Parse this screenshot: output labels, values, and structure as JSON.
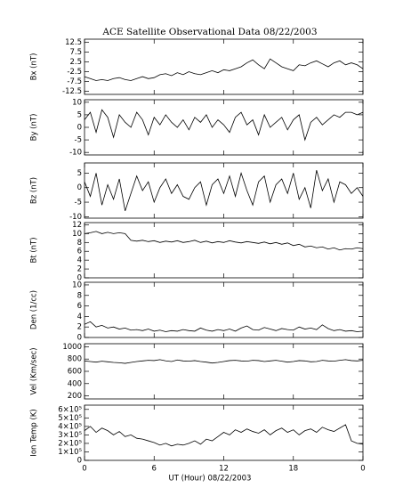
{
  "title": "ACE Satellite Observational Data  08/22/2003",
  "x_label": "UT (Hour)  08/22/2003",
  "chart_data": [
    {
      "type": "line",
      "y_label": "Bx (nT)",
      "color": "#000000",
      "xlim": [
        0,
        24
      ],
      "xticks": [
        0,
        6,
        12,
        18,
        {
          "value": 24,
          "label": "0"
        }
      ],
      "ylim": [
        -14,
        14
      ],
      "yticks": [
        -12.5,
        -7.5,
        -2.5,
        2.5,
        7.5,
        12.5
      ],
      "x": [
        0,
        0.5,
        1,
        1.5,
        2,
        2.5,
        3,
        3.5,
        4,
        4.5,
        5,
        5.5,
        6,
        6.5,
        7,
        7.5,
        8,
        8.5,
        9,
        9.5,
        10,
        10.5,
        11,
        11.5,
        12,
        12.5,
        13,
        13.5,
        14,
        14.5,
        15,
        15.5,
        16,
        16.5,
        17,
        17.5,
        18,
        18.5,
        19,
        19.5,
        20,
        20.5,
        21,
        21.5,
        22,
        22.5,
        23,
        23.5,
        24
      ],
      "values": [
        -5,
        -6,
        -7,
        -6.5,
        -7,
        -6,
        -5.5,
        -6.5,
        -7,
        -6,
        -5,
        -6,
        -5.5,
        -4,
        -3.5,
        -4.5,
        -3,
        -4,
        -2.5,
        -3.5,
        -4,
        -3,
        -2,
        -3,
        -1.5,
        -2,
        -1,
        0,
        2,
        3.5,
        1,
        -1,
        4,
        2,
        0,
        -1,
        -2,
        1,
        0.5,
        2,
        3,
        1.5,
        0,
        2,
        3,
        1,
        2,
        1,
        -1
      ]
    },
    {
      "type": "line",
      "y_label": "By (nT)",
      "color": "#000000",
      "xlim": [
        0,
        24
      ],
      "xticks": [
        0,
        6,
        12,
        18,
        {
          "value": 24,
          "label": "0"
        }
      ],
      "ylim": [
        -11,
        11
      ],
      "yticks": [
        -10,
        -5,
        0,
        5,
        10
      ],
      "x": [
        0,
        0.5,
        1,
        1.5,
        2,
        2.5,
        3,
        3.5,
        4,
        4.5,
        5,
        5.5,
        6,
        6.5,
        7,
        7.5,
        8,
        8.5,
        9,
        9.5,
        10,
        10.5,
        11,
        11.5,
        12,
        12.5,
        13,
        13.5,
        14,
        14.5,
        15,
        15.5,
        16,
        16.5,
        17,
        17.5,
        18,
        18.5,
        19,
        19.5,
        20,
        20.5,
        21,
        21.5,
        22,
        22.5,
        23,
        23.5,
        24
      ],
      "values": [
        3,
        6,
        -2,
        7,
        4,
        -4,
        5,
        2,
        0,
        6,
        3,
        -3,
        4,
        1,
        5,
        2,
        0,
        3,
        -1,
        4,
        2,
        5,
        0,
        3,
        1,
        -2,
        4,
        6,
        1,
        3,
        -3,
        5,
        0,
        2,
        4,
        -1,
        3,
        5,
        -5,
        2,
        4,
        1,
        3,
        5,
        4,
        6,
        6,
        5,
        6
      ]
    },
    {
      "type": "line",
      "y_label": "Bz (nT)",
      "color": "#000000",
      "xlim": [
        0,
        24
      ],
      "xticks": [
        0,
        6,
        12,
        18,
        {
          "value": 24,
          "label": "0"
        }
      ],
      "ylim": [
        -10.5,
        8.5
      ],
      "yticks": [
        -10,
        -5,
        0,
        5
      ],
      "x": [
        0,
        0.5,
        1,
        1.5,
        2,
        2.5,
        3,
        3.5,
        4,
        4.5,
        5,
        5.5,
        6,
        6.5,
        7,
        7.5,
        8,
        8.5,
        9,
        9.5,
        10,
        10.5,
        11,
        11.5,
        12,
        12.5,
        13,
        13.5,
        14,
        14.5,
        15,
        15.5,
        16,
        16.5,
        17,
        17.5,
        18,
        18.5,
        19,
        19.5,
        20,
        20.5,
        21,
        21.5,
        22,
        22.5,
        23,
        23.5,
        24
      ],
      "values": [
        2,
        -3,
        5,
        -6,
        1,
        -4,
        3,
        -8,
        -2,
        4,
        -1,
        2,
        -5,
        0,
        3,
        -2,
        1,
        -3,
        -4,
        0,
        2,
        -6,
        1,
        3,
        -2,
        4,
        -3,
        5,
        -1,
        -6,
        2,
        4,
        -5,
        1,
        3,
        -2,
        5,
        -4,
        0,
        -7,
        6,
        -1,
        3,
        -5,
        2,
        1,
        -2,
        0,
        -3
      ]
    },
    {
      "type": "line",
      "y_label": "Bt (nT)",
      "color": "#000000",
      "xlim": [
        0,
        24
      ],
      "xticks": [
        0,
        6,
        12,
        18,
        {
          "value": 24,
          "label": "0"
        }
      ],
      "ylim": [
        0,
        12.5
      ],
      "yticks": [
        0,
        2,
        4,
        6,
        8,
        10,
        12
      ],
      "x": [
        0,
        0.5,
        1,
        1.5,
        2,
        2.5,
        3,
        3.5,
        4,
        4.5,
        5,
        5.5,
        6,
        6.5,
        7,
        7.5,
        8,
        8.5,
        9,
        9.5,
        10,
        10.5,
        11,
        11.5,
        12,
        12.5,
        13,
        13.5,
        14,
        14.5,
        15,
        15.5,
        16,
        16.5,
        17,
        17.5,
        18,
        18.5,
        19,
        19.5,
        20,
        20.5,
        21,
        21.5,
        22,
        22.5,
        23,
        23.5,
        24
      ],
      "values": [
        10,
        10.2,
        10.5,
        10,
        10.3,
        10,
        10.2,
        10,
        8.5,
        8.3,
        8.5,
        8.2,
        8.4,
        8,
        8.3,
        8.1,
        8.4,
        8,
        8.2,
        8.5,
        8,
        8.3,
        7.9,
        8.2,
        8,
        8.4,
        8.1,
        7.9,
        8.2,
        8,
        7.8,
        8.1,
        7.7,
        8,
        7.6,
        7.9,
        7.3,
        7.6,
        7,
        7.2,
        6.8,
        7,
        6.5,
        6.8,
        6.3,
        6.6,
        6.5,
        6.8,
        6.6
      ]
    },
    {
      "type": "line",
      "y_label": "Den (1/cc)",
      "color": "#000000",
      "xlim": [
        0,
        24
      ],
      "xticks": [
        0,
        6,
        12,
        18,
        {
          "value": 24,
          "label": "0"
        }
      ],
      "ylim": [
        0,
        10.5
      ],
      "yticks": [
        0,
        2,
        4,
        6,
        8,
        10
      ],
      "x": [
        0,
        0.5,
        1,
        1.5,
        2,
        2.5,
        3,
        3.5,
        4,
        4.5,
        5,
        5.5,
        6,
        6.5,
        7,
        7.5,
        8,
        8.5,
        9,
        9.5,
        10,
        10.5,
        11,
        11.5,
        12,
        12.5,
        13,
        13.5,
        14,
        14.5,
        15,
        15.5,
        16,
        16.5,
        17,
        17.5,
        18,
        18.5,
        19,
        19.5,
        20,
        20.5,
        21,
        21.5,
        22,
        22.5,
        23,
        23.5,
        24
      ],
      "values": [
        2.5,
        3,
        2,
        2.3,
        1.8,
        2,
        1.6,
        1.8,
        1.4,
        1.5,
        1.3,
        1.6,
        1.2,
        1.4,
        1.1,
        1.3,
        1.2,
        1.5,
        1.3,
        1.2,
        1.8,
        1.4,
        1.2,
        1.5,
        1.3,
        1.6,
        1.2,
        1.8,
        2.2,
        1.5,
        1.4,
        1.9,
        1.6,
        1.3,
        1.7,
        1.5,
        1.4,
        2,
        1.6,
        1.8,
        1.5,
        2.4,
        1.7,
        1.3,
        1.5,
        1.2,
        1.3,
        1.1,
        1.2
      ]
    },
    {
      "type": "line",
      "y_label": "Vel (Km/sec)",
      "color": "#000000",
      "xlim": [
        0,
        24
      ],
      "xticks": [
        0,
        6,
        12,
        18,
        {
          "value": 24,
          "label": "0"
        }
      ],
      "ylim": [
        150,
        1050
      ],
      "yticks": [
        200,
        400,
        600,
        800,
        1000
      ],
      "x": [
        0,
        0.5,
        1,
        1.5,
        2,
        2.5,
        3,
        3.5,
        4,
        4.5,
        5,
        5.5,
        6,
        6.5,
        7,
        7.5,
        8,
        8.5,
        9,
        9.5,
        10,
        10.5,
        11,
        11.5,
        12,
        12.5,
        13,
        13.5,
        14,
        14.5,
        15,
        15.5,
        16,
        16.5,
        17,
        17.5,
        18,
        18.5,
        19,
        19.5,
        20,
        20.5,
        21,
        21.5,
        22,
        22.5,
        23,
        23.5,
        24
      ],
      "values": [
        770,
        760,
        750,
        765,
        755,
        745,
        740,
        730,
        745,
        760,
        770,
        780,
        775,
        790,
        770,
        760,
        785,
        770,
        765,
        775,
        760,
        750,
        735,
        745,
        760,
        775,
        780,
        770,
        765,
        780,
        775,
        760,
        770,
        780,
        765,
        750,
        760,
        775,
        770,
        755,
        760,
        780,
        770,
        765,
        780,
        790,
        775,
        770,
        780
      ]
    },
    {
      "type": "line",
      "y_label": "Ion Temp (K)",
      "color": "#000000",
      "xlim": [
        0,
        24
      ],
      "xticks": [
        0,
        6,
        12,
        18,
        {
          "value": 24,
          "label": "0"
        }
      ],
      "ylim": [
        0,
        650000
      ],
      "yticks": [
        0,
        {
          "value": 100000,
          "label": "1×10⁵"
        },
        {
          "value": 200000,
          "label": "2×10⁵"
        },
        {
          "value": 300000,
          "label": "3×10⁵"
        },
        {
          "value": 400000,
          "label": "4×10⁵"
        },
        {
          "value": 500000,
          "label": "5×10⁵"
        },
        {
          "value": 600000,
          "label": "6×10⁵"
        }
      ],
      "x": [
        0,
        0.5,
        1,
        1.5,
        2,
        2.5,
        3,
        3.5,
        4,
        4.5,
        5,
        5.5,
        6,
        6.5,
        7,
        7.5,
        8,
        8.5,
        9,
        9.5,
        10,
        10.5,
        11,
        11.5,
        12,
        12.5,
        13,
        13.5,
        14,
        14.5,
        15,
        15.5,
        16,
        16.5,
        17,
        17.5,
        18,
        18.5,
        19,
        19.5,
        20,
        20.5,
        21,
        21.5,
        22,
        22.5,
        23,
        23.5,
        24
      ],
      "values": [
        350000,
        400000,
        330000,
        380000,
        350000,
        300000,
        340000,
        280000,
        300000,
        260000,
        250000,
        230000,
        210000,
        180000,
        200000,
        170000,
        190000,
        180000,
        200000,
        230000,
        190000,
        250000,
        230000,
        280000,
        330000,
        300000,
        360000,
        330000,
        370000,
        340000,
        320000,
        360000,
        300000,
        350000,
        380000,
        330000,
        360000,
        300000,
        350000,
        370000,
        330000,
        390000,
        360000,
        340000,
        380000,
        420000,
        230000,
        200000,
        190000
      ]
    }
  ]
}
